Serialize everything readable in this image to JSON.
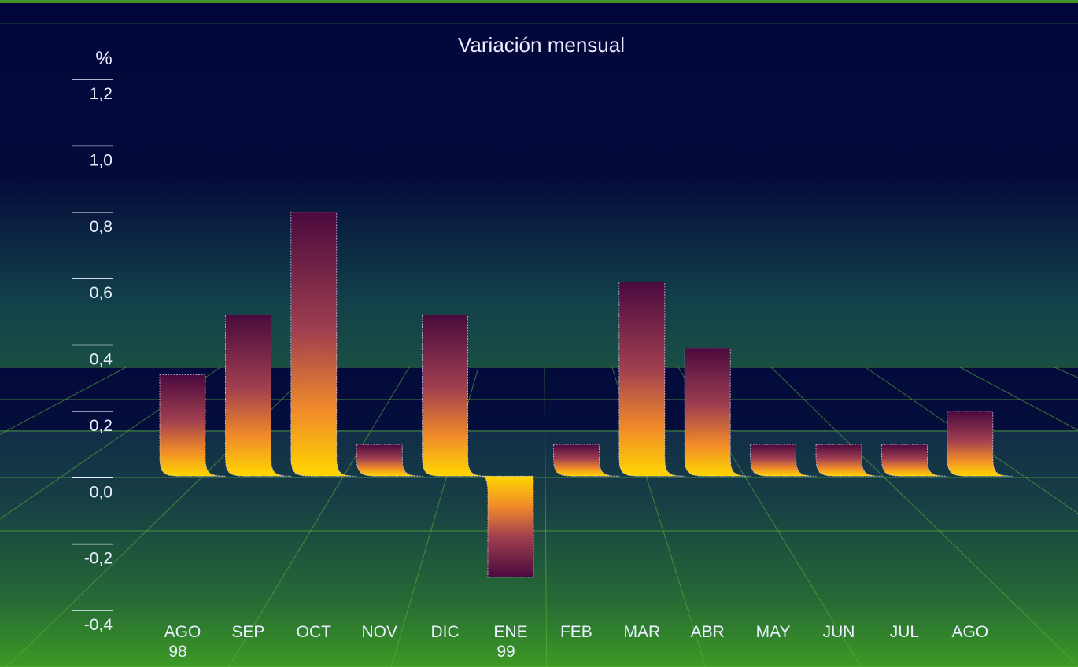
{
  "chart_data": {
    "type": "bar",
    "title": "Variación mensual",
    "ylabel": "%",
    "ylim": [
      -0.4,
      1.2
    ],
    "yticks": [
      "1,2",
      "1,0",
      "0,8",
      "0,6",
      "0,4",
      "0,2",
      "0,0",
      "-0,2",
      "-0,4"
    ],
    "categories": [
      {
        "label": "AGO",
        "sub": "98"
      },
      {
        "label": "SEP",
        "sub": ""
      },
      {
        "label": "OCT",
        "sub": ""
      },
      {
        "label": "NOV",
        "sub": ""
      },
      {
        "label": "DIC",
        "sub": ""
      },
      {
        "label": "ENE",
        "sub": "99"
      },
      {
        "label": "FEB",
        "sub": ""
      },
      {
        "label": "MAR",
        "sub": ""
      },
      {
        "label": "ABR",
        "sub": ""
      },
      {
        "label": "MAY",
        "sub": ""
      },
      {
        "label": "JUN",
        "sub": ""
      },
      {
        "label": "JUL",
        "sub": ""
      },
      {
        "label": "AGO",
        "sub": ""
      }
    ],
    "values": [
      0.31,
      0.49,
      0.8,
      0.1,
      0.49,
      -0.3,
      0.1,
      0.59,
      0.39,
      0.1,
      0.1,
      0.1,
      0.2
    ],
    "grid": true,
    "legend": "none"
  },
  "colors": {
    "sky_top": "#03063a",
    "sky_green": "#3f9424",
    "floor_dark": "#0c1d4a",
    "floor_green": "#3d9a24",
    "grid_line": "#5fb33a",
    "bar_top": "#4a0a3e",
    "bar_bottom": "#ffd700",
    "text": "#eaf0ff"
  }
}
